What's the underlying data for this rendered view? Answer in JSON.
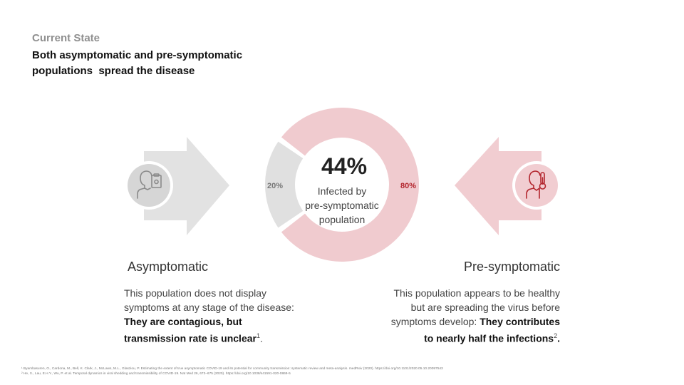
{
  "header": {
    "kicker": "Current State",
    "title_line1": "Both asymptomatic and pre-symptomatic",
    "title_line2": "populations  spread the disease"
  },
  "donut": {
    "center_value": "44%",
    "center_line1": "Infected by",
    "center_line2": "pre-symptomatic",
    "center_line3": "population",
    "left_label": "20%",
    "right_label": "80%",
    "left_share": 0.2,
    "right_share": 0.8,
    "colors": {
      "asymptomatic": "#e0e0e0",
      "presymptomatic": "#f0cbcf",
      "accent": "#b3262e",
      "grey_icon": "#8a8a8a"
    }
  },
  "asymptomatic": {
    "heading": "Asymptomatic",
    "icon": "person-clipboard-icon",
    "line1": "This population does not display",
    "line2": "symptoms at any stage of the disease:",
    "bold1": "They are contagious, but",
    "bold2": "transmission rate is unclear",
    "sup": "1",
    "tail": "."
  },
  "presymptomatic": {
    "heading": "Pre-symptomatic",
    "icon": "person-thermometer-icon",
    "line1": "This population appears to be healthy",
    "line2": "but are spreading the virus before",
    "line3_plain": "symptoms develop: ",
    "line3_bold": "They contributes",
    "line4_bold": "to nearly half the infections",
    "sup": "2",
    "tail": "."
  },
  "footnotes": {
    "fn1": "¹ Byambasuren, O., Cardona, M., Bell, K. Clark, J., McLaws, M.L., Glasziou, P. Estimating the extent of true asymptomatic COVID-19 and its potential for community transmission: systematic review and meta-analysis. medRxiv (2020). https://doi.org/10.1101/2020.05.10.20097543",
    "fn2": "² He, X., Lau, E.H.Y., Wu, P. et al. Temporal dynamics in viral shedding and transmissibility of COVID-19. Nat Med 26, 672–675 (2020). https://doi.org/10.1038/s41591-020-0869-5"
  }
}
